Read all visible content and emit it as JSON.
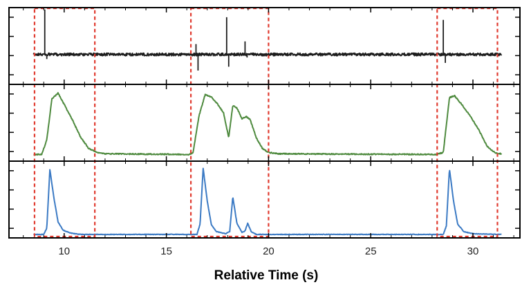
{
  "chart_data": {
    "type": "line",
    "xlabel": "Relative Time (s)",
    "xlim": [
      7.3,
      32.3
    ],
    "x_ticks": [
      10,
      15,
      20,
      25,
      30
    ],
    "x_tick_labels": [
      "10",
      "15",
      "20",
      "25",
      "30"
    ],
    "grid": false,
    "legend": "none",
    "window_color": "#e03a2f",
    "windows": [
      {
        "start": 8.55,
        "end": 11.5
      },
      {
        "start": 16.2,
        "end": 20.0
      },
      {
        "start": 28.25,
        "end": 31.2
      }
    ],
    "panels": [
      {
        "color": "#1c1c1c",
        "ylim": [
          -1.0,
          1.0
        ],
        "baseline": -0.22,
        "noise": 0.035,
        "x_range": [
          8.5,
          31.4
        ],
        "spikes": [
          {
            "x": 9.05,
            "y": 0.95
          },
          {
            "x": 9.15,
            "y": -0.34
          },
          {
            "x": 16.45,
            "y": 0.05
          },
          {
            "x": 16.55,
            "y": -0.64
          },
          {
            "x": 17.95,
            "y": 0.75
          },
          {
            "x": 18.05,
            "y": -0.54
          },
          {
            "x": 18.85,
            "y": 0.12
          },
          {
            "x": 18.95,
            "y": -0.3
          },
          {
            "x": 28.55,
            "y": 0.68
          },
          {
            "x": 28.65,
            "y": -0.44
          }
        ]
      },
      {
        "color": "#4e8a3e",
        "ylim": [
          -0.1,
          1.05
        ],
        "baseline": 0.0,
        "noise": 0.008,
        "x_range": [
          8.5,
          31.4
        ],
        "points": [
          [
            8.5,
            0.0
          ],
          [
            8.9,
            0.0
          ],
          [
            9.15,
            0.22
          ],
          [
            9.4,
            0.83
          ],
          [
            9.7,
            0.92
          ],
          [
            10.0,
            0.75
          ],
          [
            10.4,
            0.52
          ],
          [
            10.8,
            0.26
          ],
          [
            11.2,
            0.09
          ],
          [
            11.6,
            0.03
          ],
          [
            12.0,
            0.01
          ],
          [
            16.1,
            0.0
          ],
          [
            16.3,
            0.02
          ],
          [
            16.6,
            0.58
          ],
          [
            16.9,
            0.9
          ],
          [
            17.2,
            0.86
          ],
          [
            17.5,
            0.76
          ],
          [
            17.8,
            0.62
          ],
          [
            18.05,
            0.25
          ],
          [
            18.25,
            0.73
          ],
          [
            18.45,
            0.7
          ],
          [
            18.7,
            0.53
          ],
          [
            18.9,
            0.57
          ],
          [
            19.1,
            0.52
          ],
          [
            19.4,
            0.25
          ],
          [
            19.7,
            0.09
          ],
          [
            20.0,
            0.03
          ],
          [
            20.5,
            0.01
          ],
          [
            28.2,
            0.0
          ],
          [
            28.55,
            0.03
          ],
          [
            28.85,
            0.85
          ],
          [
            29.1,
            0.88
          ],
          [
            29.5,
            0.73
          ],
          [
            29.9,
            0.56
          ],
          [
            30.3,
            0.36
          ],
          [
            30.7,
            0.12
          ],
          [
            31.1,
            0.02
          ],
          [
            31.4,
            0.01
          ]
        ]
      },
      {
        "color": "#3b7ac4",
        "ylim": [
          -0.05,
          1.05
        ],
        "baseline": 0.0,
        "noise": 0.004,
        "x_range": [
          8.5,
          31.4
        ],
        "points": [
          [
            8.5,
            0.0
          ],
          [
            9.0,
            0.0
          ],
          [
            9.15,
            0.09
          ],
          [
            9.3,
            0.93
          ],
          [
            9.5,
            0.52
          ],
          [
            9.7,
            0.18
          ],
          [
            9.95,
            0.06
          ],
          [
            10.3,
            0.02
          ],
          [
            10.8,
            0.0
          ],
          [
            16.5,
            0.0
          ],
          [
            16.65,
            0.15
          ],
          [
            16.8,
            0.95
          ],
          [
            17.0,
            0.48
          ],
          [
            17.2,
            0.14
          ],
          [
            17.45,
            0.04
          ],
          [
            17.9,
            0.01
          ],
          [
            18.1,
            0.04
          ],
          [
            18.25,
            0.54
          ],
          [
            18.45,
            0.16
          ],
          [
            18.7,
            0.03
          ],
          [
            18.85,
            0.05
          ],
          [
            18.98,
            0.16
          ],
          [
            19.15,
            0.04
          ],
          [
            19.4,
            0.0
          ],
          [
            28.55,
            0.0
          ],
          [
            28.7,
            0.12
          ],
          [
            28.85,
            0.94
          ],
          [
            29.05,
            0.48
          ],
          [
            29.25,
            0.15
          ],
          [
            29.55,
            0.04
          ],
          [
            30.0,
            0.01
          ],
          [
            31.4,
            0.0
          ]
        ]
      }
    ]
  }
}
